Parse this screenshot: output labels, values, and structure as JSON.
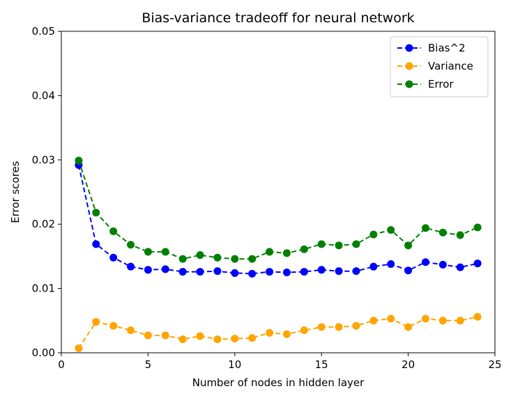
{
  "chart_data": {
    "type": "line",
    "title": "Bias-variance tradeoff for neural network",
    "xlabel": "Number of nodes in hidden layer",
    "ylabel": "Error scores",
    "xlim": [
      0,
      25
    ],
    "ylim": [
      0,
      0.05
    ],
    "xticks": [
      0,
      5,
      10,
      15,
      20,
      25
    ],
    "xtick_labels": [
      "0",
      "5",
      "10",
      "15",
      "20",
      "25"
    ],
    "yticks": [
      0.0,
      0.01,
      0.02,
      0.03,
      0.04,
      0.05
    ],
    "ytick_labels": [
      "0.00",
      "0.01",
      "0.02",
      "0.03",
      "0.04",
      "0.05"
    ],
    "grid": false,
    "legend_position": "top-right",
    "x": [
      1,
      2,
      3,
      4,
      5,
      6,
      7,
      8,
      9,
      10,
      11,
      12,
      13,
      14,
      15,
      16,
      17,
      18,
      19,
      20,
      21,
      22,
      23,
      24
    ],
    "series": [
      {
        "name": "Bias^2",
        "color": "#0000ff",
        "values": [
          0.0292,
          0.0169,
          0.0148,
          0.0134,
          0.0129,
          0.013,
          0.0126,
          0.0126,
          0.0127,
          0.0124,
          0.0123,
          0.0126,
          0.0125,
          0.0126,
          0.0129,
          0.0127,
          0.0127,
          0.0134,
          0.0138,
          0.0128,
          0.0141,
          0.0137,
          0.0133,
          0.0139
        ]
      },
      {
        "name": "Variance",
        "color": "#ffa500",
        "values": [
          0.0007,
          0.0048,
          0.0042,
          0.0035,
          0.0027,
          0.0027,
          0.0021,
          0.0026,
          0.0021,
          0.0022,
          0.0023,
          0.0031,
          0.0029,
          0.0035,
          0.004,
          0.004,
          0.0042,
          0.005,
          0.0053,
          0.004,
          0.0053,
          0.005,
          0.005,
          0.0056
        ]
      },
      {
        "name": "Error",
        "color": "#008000",
        "values": [
          0.0299,
          0.0218,
          0.0189,
          0.0168,
          0.0157,
          0.0157,
          0.0146,
          0.0152,
          0.0148,
          0.0146,
          0.0146,
          0.0157,
          0.0155,
          0.0161,
          0.0169,
          0.0167,
          0.0169,
          0.0184,
          0.0191,
          0.0167,
          0.0194,
          0.0187,
          0.0183,
          0.0195
        ]
      }
    ]
  }
}
